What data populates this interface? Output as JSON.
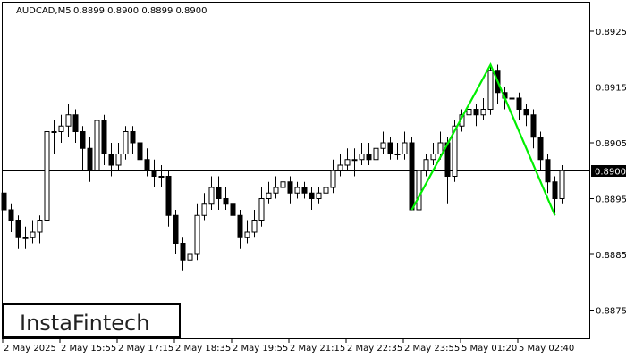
{
  "header": {
    "symbol": "AUDCAD,M5",
    "ohlc_text": "0.8899 0.8900 0.8899 0.8900"
  },
  "logo": {
    "text": "InstaFintech"
  },
  "colors": {
    "background": "#ffffff",
    "candle": "#000000",
    "pattern": "#00ee00",
    "price_label_bg": "#000000",
    "price_label_text": "#ffffff"
  },
  "chart_data": {
    "type": "candlestick",
    "ylim": [
      0.8869,
      0.893
    ],
    "y_ticks": [
      "0.8925",
      "0.8915",
      "0.8905",
      "0.8895",
      "0.8885",
      "0.8875"
    ],
    "x_ticks": [
      {
        "label": "2 May 2025",
        "index": 0
      },
      {
        "label": "2 May 15:55",
        "index": 8
      },
      {
        "label": "2 May 17:15",
        "index": 16
      },
      {
        "label": "2 May 18:35",
        "index": 24
      },
      {
        "label": "2 May 19:55",
        "index": 32
      },
      {
        "label": "2 May 21:15",
        "index": 40
      },
      {
        "label": "2 May 22:35",
        "index": 48
      },
      {
        "label": "2 May 23:55",
        "index": 56
      },
      {
        "label": "5 May 01:20",
        "index": 64
      },
      {
        "label": "5 May 02:40",
        "index": 72
      }
    ],
    "current_price": {
      "value": 0.89,
      "label": "0.8900"
    },
    "pattern": {
      "type": "double top",
      "points": [
        [
          57,
          0.8893
        ],
        [
          68,
          0.8919
        ],
        [
          77,
          0.8892
        ]
      ]
    },
    "ohlc": [
      [
        0.8896,
        0.8897,
        0.8891,
        0.8893
      ],
      [
        0.8893,
        0.8894,
        0.8889,
        0.8891
      ],
      [
        0.8891,
        0.8892,
        0.8886,
        0.8888
      ],
      [
        0.8888,
        0.889,
        0.8886,
        0.8888
      ],
      [
        0.8888,
        0.8891,
        0.8887,
        0.8889
      ],
      [
        0.8889,
        0.8892,
        0.8887,
        0.8891
      ],
      [
        0.8891,
        0.8908,
        0.8876,
        0.8907
      ],
      [
        0.8907,
        0.8909,
        0.8903,
        0.8907
      ],
      [
        0.8907,
        0.891,
        0.8905,
        0.8908
      ],
      [
        0.8908,
        0.8912,
        0.8906,
        0.891
      ],
      [
        0.891,
        0.8911,
        0.8905,
        0.8907
      ],
      [
        0.8907,
        0.8908,
        0.89,
        0.8904
      ],
      [
        0.8904,
        0.8906,
        0.8898,
        0.89
      ],
      [
        0.89,
        0.8911,
        0.8899,
        0.8909
      ],
      [
        0.8909,
        0.891,
        0.8901,
        0.8903
      ],
      [
        0.8903,
        0.8905,
        0.8899,
        0.8901
      ],
      [
        0.8901,
        0.8905,
        0.89,
        0.8903
      ],
      [
        0.8903,
        0.8908,
        0.8902,
        0.8907
      ],
      [
        0.8907,
        0.8908,
        0.8903,
        0.8905
      ],
      [
        0.8905,
        0.8906,
        0.89,
        0.8902
      ],
      [
        0.8902,
        0.8904,
        0.8899,
        0.89
      ],
      [
        0.89,
        0.8902,
        0.8897,
        0.8899
      ],
      [
        0.8899,
        0.8901,
        0.8897,
        0.8899
      ],
      [
        0.8899,
        0.89,
        0.889,
        0.8892
      ],
      [
        0.8892,
        0.8893,
        0.8885,
        0.8887
      ],
      [
        0.8887,
        0.8888,
        0.8882,
        0.8884
      ],
      [
        0.8884,
        0.8887,
        0.8881,
        0.8885
      ],
      [
        0.8885,
        0.8894,
        0.8884,
        0.8892
      ],
      [
        0.8892,
        0.8896,
        0.8891,
        0.8894
      ],
      [
        0.8894,
        0.8899,
        0.8893,
        0.8897
      ],
      [
        0.8897,
        0.8899,
        0.8893,
        0.8895
      ],
      [
        0.8895,
        0.8897,
        0.8893,
        0.8894
      ],
      [
        0.8894,
        0.8895,
        0.889,
        0.8892
      ],
      [
        0.8892,
        0.8893,
        0.8886,
        0.8888
      ],
      [
        0.8888,
        0.8891,
        0.8887,
        0.8889
      ],
      [
        0.8889,
        0.8893,
        0.8888,
        0.8891
      ],
      [
        0.8891,
        0.8897,
        0.889,
        0.8895
      ],
      [
        0.8895,
        0.8898,
        0.8894,
        0.8896
      ],
      [
        0.8896,
        0.8899,
        0.8895,
        0.8897
      ],
      [
        0.8897,
        0.89,
        0.8896,
        0.8898
      ],
      [
        0.8898,
        0.8899,
        0.8894,
        0.8896
      ],
      [
        0.8896,
        0.8898,
        0.8895,
        0.8897
      ],
      [
        0.8897,
        0.8898,
        0.8895,
        0.8896
      ],
      [
        0.8896,
        0.8897,
        0.8893,
        0.8895
      ],
      [
        0.8895,
        0.8897,
        0.8894,
        0.8896
      ],
      [
        0.8896,
        0.8899,
        0.8895,
        0.8897
      ],
      [
        0.8897,
        0.8902,
        0.8896,
        0.89
      ],
      [
        0.89,
        0.8903,
        0.8899,
        0.8901
      ],
      [
        0.8901,
        0.8904,
        0.89,
        0.8902
      ],
      [
        0.8902,
        0.8904,
        0.8899,
        0.8902
      ],
      [
        0.8902,
        0.8905,
        0.8901,
        0.8903
      ],
      [
        0.8903,
        0.8905,
        0.8901,
        0.8902
      ],
      [
        0.8902,
        0.8906,
        0.8901,
        0.8904
      ],
      [
        0.8904,
        0.8907,
        0.8903,
        0.8905
      ],
      [
        0.8905,
        0.8906,
        0.8902,
        0.8903
      ],
      [
        0.8903,
        0.8905,
        0.8902,
        0.8903
      ],
      [
        0.8903,
        0.8907,
        0.8902,
        0.8905
      ],
      [
        0.8905,
        0.8906,
        0.8893,
        0.8893
      ],
      [
        0.8893,
        0.8901,
        0.8893,
        0.89
      ],
      [
        0.89,
        0.8903,
        0.8899,
        0.8902
      ],
      [
        0.8902,
        0.8905,
        0.8901,
        0.8903
      ],
      [
        0.8903,
        0.8907,
        0.8902,
        0.8905
      ],
      [
        0.8905,
        0.8906,
        0.8894,
        0.8899
      ],
      [
        0.8899,
        0.8909,
        0.8898,
        0.8908
      ],
      [
        0.8908,
        0.8911,
        0.8907,
        0.891
      ],
      [
        0.891,
        0.8912,
        0.8908,
        0.8911
      ],
      [
        0.8911,
        0.8912,
        0.8908,
        0.891
      ],
      [
        0.891,
        0.8913,
        0.8909,
        0.8911
      ],
      [
        0.8911,
        0.8919,
        0.891,
        0.8918
      ],
      [
        0.8918,
        0.8919,
        0.8912,
        0.8914
      ],
      [
        0.8914,
        0.8915,
        0.8911,
        0.8913
      ],
      [
        0.8913,
        0.8914,
        0.8911,
        0.8913
      ],
      [
        0.8913,
        0.8914,
        0.8909,
        0.8911
      ],
      [
        0.8911,
        0.8912,
        0.8908,
        0.891
      ],
      [
        0.891,
        0.8911,
        0.8904,
        0.8906
      ],
      [
        0.8906,
        0.8907,
        0.89,
        0.8902
      ],
      [
        0.8902,
        0.8903,
        0.8896,
        0.8898
      ],
      [
        0.8898,
        0.8899,
        0.8892,
        0.8895
      ],
      [
        0.8895,
        0.8901,
        0.8894,
        0.89
      ]
    ]
  }
}
